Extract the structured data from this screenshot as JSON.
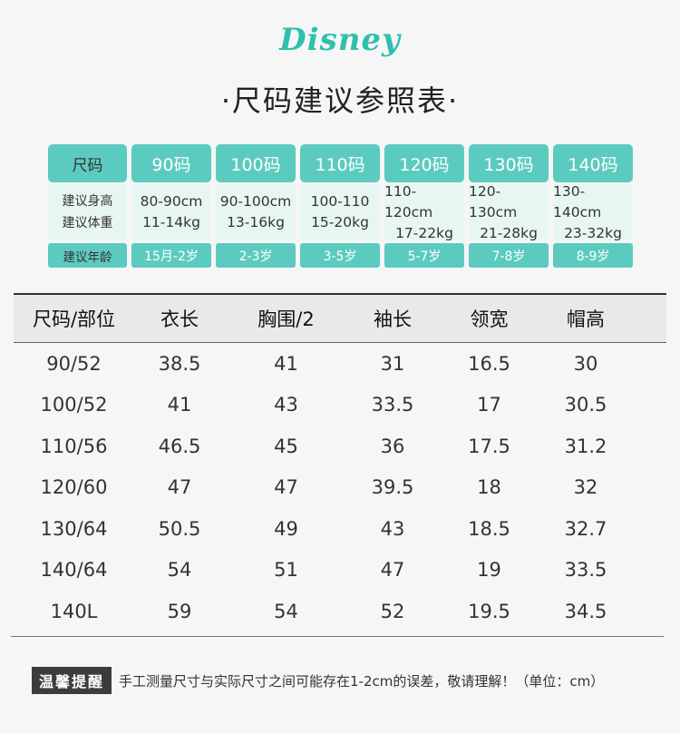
{
  "brand": "Disney",
  "title": "·尺码建议参照表·",
  "size_chart": {
    "row_labels": {
      "size": "尺码",
      "height": "建议身高",
      "weight": "建议体重",
      "age": "建议年龄"
    },
    "columns": [
      {
        "size": "90码",
        "height": "80-90cm",
        "weight": "11-14kg",
        "age": "15月-2岁"
      },
      {
        "size": "100码",
        "height": "90-100cm",
        "weight": "13-16kg",
        "age": "2-3岁"
      },
      {
        "size": "110码",
        "height": "100-110",
        "weight": "15-20kg",
        "age": "3-5岁"
      },
      {
        "size": "120码",
        "height": "110-120cm",
        "weight": "17-22kg",
        "age": "5-7岁"
      },
      {
        "size": "130码",
        "height": "120-130cm",
        "weight": "21-28kg",
        "age": "7-8岁"
      },
      {
        "size": "140码",
        "height": "130-140cm",
        "weight": "23-32kg",
        "age": "8-9岁"
      }
    ]
  },
  "measure_table": {
    "headers": [
      "尺码/部位",
      "衣长",
      "胸围/2",
      "袖长",
      "领宽",
      "帽高"
    ],
    "rows": [
      [
        "90/52",
        "38.5",
        "41",
        "31",
        "16.5",
        "30"
      ],
      [
        "100/52",
        "41",
        "43",
        "33.5",
        "17",
        "30.5"
      ],
      [
        "110/56",
        "46.5",
        "45",
        "36",
        "17.5",
        "31.2"
      ],
      [
        "120/60",
        "47",
        "47",
        "39.5",
        "18",
        "32"
      ],
      [
        "130/64",
        "50.5",
        "49",
        "43",
        "18.5",
        "32.7"
      ],
      [
        "140/64",
        "54",
        "51",
        "47",
        "19",
        "33.5"
      ],
      [
        "140L",
        "59",
        "54",
        "52",
        "19.5",
        "34.5"
      ]
    ]
  },
  "note": {
    "tag": "温馨提醒",
    "text": "手工测量尺寸与实际尺寸之间可能存在1-2cm的误差，敬请理解！（单位：cm）"
  }
}
